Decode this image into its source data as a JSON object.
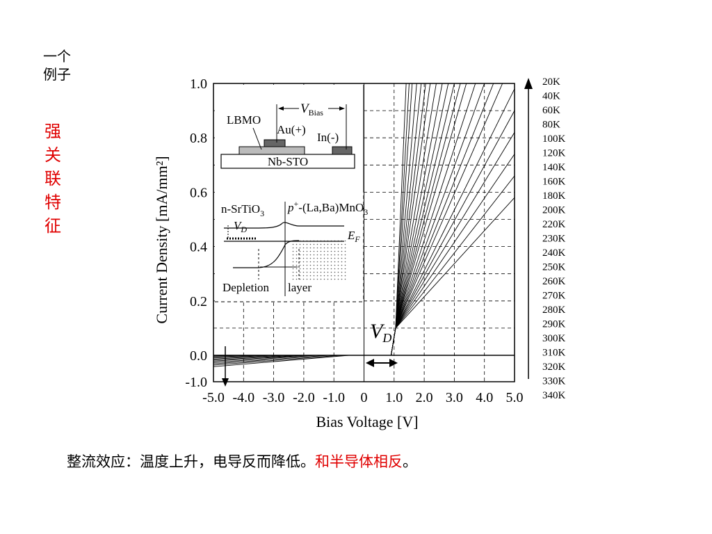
{
  "slide": {
    "side_title": [
      "一个",
      "例子"
    ],
    "side_keyword": [
      "强",
      "关",
      "联",
      "特",
      "征"
    ],
    "caption_black": "整流效应：温度上升，电导反而降低。",
    "caption_red": "和半导体相反",
    "caption_end": "。"
  },
  "colors": {
    "accent_red": "#e00000",
    "ink": "#000000"
  },
  "chart_data": {
    "type": "line",
    "xlabel": "Bias Voltage [V]",
    "ylabel": "Current Density [mA/mm²]",
    "xlim": [
      -5.0,
      5.0
    ],
    "ylim": [
      -1.0,
      1.0
    ],
    "x_ticks": [
      "-5.0",
      "-4.0",
      "-3.0",
      "-2.0",
      "-1.0",
      "0",
      "1.0",
      "2.0",
      "3.0",
      "4.0",
      "5.0"
    ],
    "y_ticks": [
      "1.0",
      "0.8",
      "0.6",
      "0.4",
      "0.2",
      "0.0",
      "-1.0"
    ],
    "grid": true,
    "legend": [
      "20K",
      "40K",
      "60K",
      "80K",
      "100K",
      "120K",
      "140K",
      "160K",
      "180K",
      "200K",
      "220K",
      "230K",
      "240K",
      "250K",
      "260K",
      "270K",
      "280K",
      "290K",
      "300K",
      "310K",
      "320K",
      "330K",
      "340K"
    ],
    "legend_placement": "right",
    "annotation_vd": "V",
    "annotation_vd_sub": "D",
    "curves_positive": [
      {
        "x": [
          0,
          0.9,
          1.05,
          1.4
        ],
        "y": [
          0,
          0,
          0.1,
          1.0
        ]
      },
      {
        "x": [
          0,
          0.9,
          1.05,
          1.5
        ],
        "y": [
          0,
          0,
          0.1,
          1.0
        ]
      },
      {
        "x": [
          0,
          0.9,
          1.05,
          1.6
        ],
        "y": [
          0,
          0,
          0.1,
          1.0
        ]
      },
      {
        "x": [
          0,
          0.9,
          1.05,
          1.75
        ],
        "y": [
          0,
          0,
          0.1,
          1.0
        ]
      },
      {
        "x": [
          0,
          0.9,
          1.05,
          1.9
        ],
        "y": [
          0,
          0,
          0.1,
          1.0
        ]
      },
      {
        "x": [
          0,
          0.9,
          1.05,
          2.05
        ],
        "y": [
          0,
          0,
          0.1,
          1.0
        ]
      },
      {
        "x": [
          0,
          0.9,
          1.05,
          2.2
        ],
        "y": [
          0,
          0,
          0.1,
          1.0
        ]
      },
      {
        "x": [
          0,
          0.9,
          1.05,
          2.4
        ],
        "y": [
          0,
          0,
          0.1,
          1.0
        ]
      },
      {
        "x": [
          0,
          0.9,
          1.05,
          2.6
        ],
        "y": [
          0,
          0,
          0.1,
          1.0
        ]
      },
      {
        "x": [
          0,
          0.9,
          1.05,
          2.8
        ],
        "y": [
          0,
          0,
          0.1,
          1.0
        ]
      },
      {
        "x": [
          0,
          0.9,
          1.05,
          3.0
        ],
        "y": [
          0,
          0,
          0.1,
          1.0
        ]
      },
      {
        "x": [
          0,
          0.9,
          1.05,
          3.2
        ],
        "y": [
          0,
          0,
          0.1,
          1.0
        ]
      },
      {
        "x": [
          0,
          0.9,
          1.05,
          3.4
        ],
        "y": [
          0,
          0,
          0.1,
          1.0
        ]
      },
      {
        "x": [
          0,
          0.9,
          1.05,
          3.7
        ],
        "y": [
          0,
          0,
          0.1,
          1.0
        ]
      },
      {
        "x": [
          0,
          0.9,
          1.05,
          4.0
        ],
        "y": [
          0,
          0,
          0.1,
          1.0
        ]
      },
      {
        "x": [
          0,
          0.9,
          1.05,
          4.3
        ],
        "y": [
          0,
          0,
          0.1,
          1.0
        ]
      },
      {
        "x": [
          0,
          0.9,
          1.05,
          4.6
        ],
        "y": [
          0,
          0,
          0.1,
          1.0
        ]
      },
      {
        "x": [
          0,
          0.9,
          1.05,
          5.0
        ],
        "y": [
          0,
          0,
          0.1,
          0.98
        ]
      },
      {
        "x": [
          0,
          0.9,
          1.05,
          5.0
        ],
        "y": [
          0,
          0,
          0.1,
          0.9
        ]
      },
      {
        "x": [
          0,
          0.9,
          1.05,
          5.0
        ],
        "y": [
          0,
          0,
          0.1,
          0.82
        ]
      },
      {
        "x": [
          0,
          0.9,
          1.05,
          5.0
        ],
        "y": [
          0,
          0,
          0.1,
          0.74
        ]
      },
      {
        "x": [
          0,
          0.9,
          1.05,
          5.0
        ],
        "y": [
          0,
          0,
          0.1,
          0.66
        ]
      },
      {
        "x": [
          0,
          0.9,
          1.05,
          5.0
        ],
        "y": [
          0,
          0,
          0.1,
          0.58
        ]
      }
    ],
    "curves_negative": [
      {
        "x": [
          -5.0,
          -4.0
        ],
        "y": [
          -0.03,
          0
        ]
      },
      {
        "x": [
          -5.0,
          -3.4
        ],
        "y": [
          -0.06,
          0
        ]
      },
      {
        "x": [
          -5.0,
          -3.0
        ],
        "y": [
          -0.1,
          0
        ]
      },
      {
        "x": [
          -5.0,
          -2.6
        ],
        "y": [
          -0.14,
          0
        ]
      },
      {
        "x": [
          -5.0,
          -2.2
        ],
        "y": [
          -0.18,
          0
        ]
      },
      {
        "x": [
          -5.0,
          -1.9
        ],
        "y": [
          -0.22,
          0
        ]
      },
      {
        "x": [
          -5.0,
          -1.6
        ],
        "y": [
          -0.27,
          0
        ]
      },
      {
        "x": [
          -5.0,
          -1.2
        ],
        "y": [
          -0.32,
          0
        ]
      },
      {
        "x": [
          -5.0,
          -0.8
        ],
        "y": [
          -0.37,
          0
        ]
      },
      {
        "x": [
          -5.0,
          -0.5
        ],
        "y": [
          -0.43,
          0
        ]
      }
    ]
  },
  "inset": {
    "lbmo": "LBMO",
    "vbias_v": "V",
    "vbias_sub": "Bias",
    "au": "Au(+)",
    "in": "In(-)",
    "nbsto": "Nb-STO",
    "n_srtio3": "n-SrTiO",
    "n_srtio3_sub": "3",
    "p_lbmo": "p",
    "p_lbmo_sup": "+",
    "p_lbmo_rest": "-(La,Ba)MnO",
    "p_lbmo_sub": "3",
    "vd_v": "V",
    "vd_sub": "D",
    "ef_e": "E",
    "ef_sub": "F",
    "depletion": "Depletion",
    "layer": "layer"
  }
}
